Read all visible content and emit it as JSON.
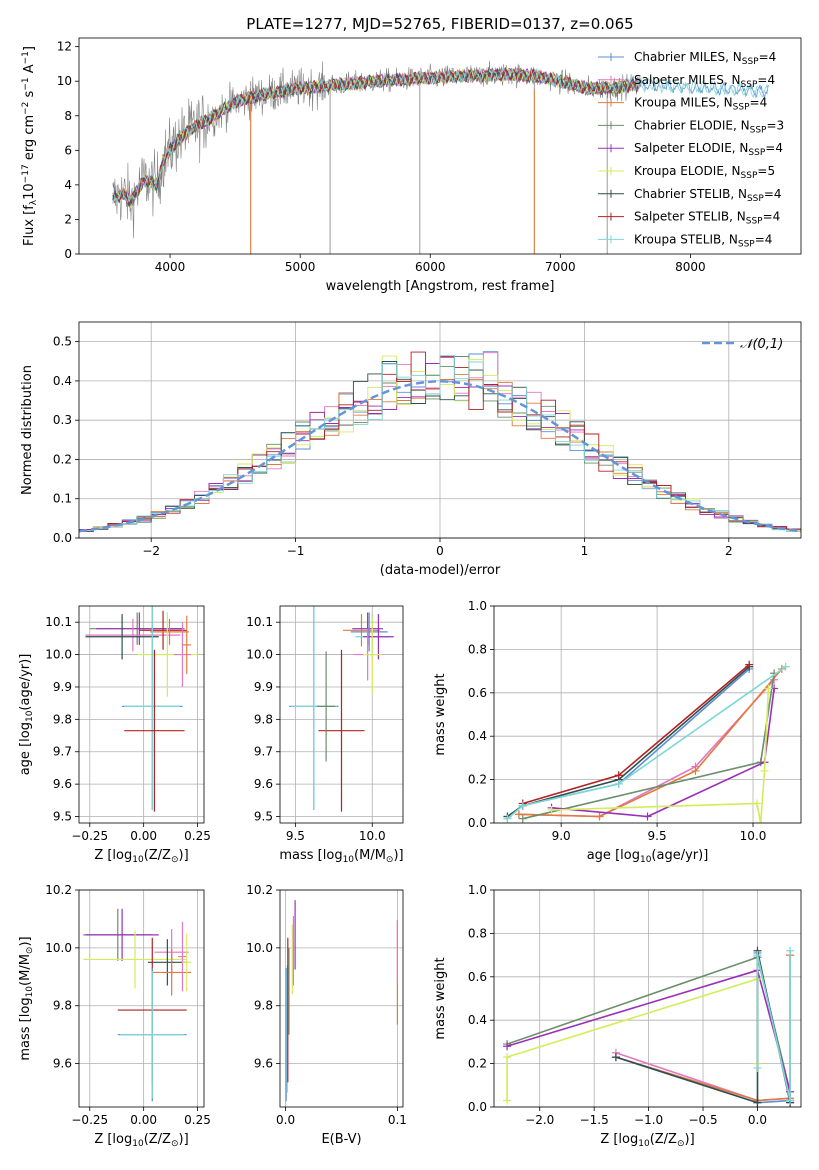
{
  "figure": {
    "title": "PLATE=1277, MJD=52765, FIBERID=0137, z=0.065"
  },
  "chart_data": [
    {
      "id": "spectrum",
      "type": "line",
      "xlabel": "wavelength [Angstrom, rest frame]",
      "ylabel": "Flux [f_λ10^−17 erg cm^−2 s^−1 A^−1]",
      "xlim": [
        3300,
        8850
      ],
      "ylim": [
        0,
        12.5
      ],
      "xticks": [
        4000,
        5000,
        6000,
        7000,
        8000
      ],
      "yticks": [
        0,
        2,
        4,
        6,
        8,
        10,
        12
      ],
      "legend_position": "top-right",
      "series": [
        {
          "name": "Chabrier MILES, N_SSP=4",
          "color": "#5b8fd6"
        },
        {
          "name": "Salpeter MILES, N_SSP=4",
          "color": "#e377c2"
        },
        {
          "name": "Kroupa MILES, N_SSP=4",
          "color": "#e07b3a"
        },
        {
          "name": "Chabrier ELODIE, N_SSP=3",
          "color": "#6b8e6b"
        },
        {
          "name": "Salpeter ELODIE, N_SSP=4",
          "color": "#9b30b8"
        },
        {
          "name": "Kroupa ELODIE, N_SSP=5",
          "color": "#d4ec5a"
        },
        {
          "name": "Chabrier STELIB, N_SSP=4",
          "color": "#2f4f4f"
        },
        {
          "name": "Salpeter STELIB, N_SSP=4",
          "color": "#b22222"
        },
        {
          "name": "Kroupa STELIB, N_SSP=4",
          "color": "#7ed6d6"
        }
      ],
      "data_color": "#808080",
      "model_shape": {
        "x": [
          3560,
          3650,
          3700,
          3800,
          3900,
          3950,
          4050,
          4150,
          4300,
          4500,
          4700,
          5000,
          5300,
          5600,
          6000,
          6300,
          6600,
          6800,
          7000,
          7200,
          7400,
          7600
        ],
        "y": [
          3.2,
          3.5,
          3.0,
          4.3,
          4.0,
          5.5,
          6.5,
          7.2,
          7.8,
          8.8,
          9.2,
          9.6,
          9.8,
          10.0,
          10.2,
          10.3,
          10.4,
          10.3,
          10.0,
          9.6,
          9.6,
          9.8
        ]
      }
    },
    {
      "id": "residual-hist",
      "type": "step",
      "xlabel": "(data-model)/error",
      "ylabel": "Normed distribution",
      "xlim": [
        -2.5,
        2.5
      ],
      "ylim": [
        0,
        0.55
      ],
      "xticks": [
        -2,
        -1,
        0,
        1,
        2
      ],
      "xtick_labels": [
        "−2",
        "−1",
        "0",
        "1",
        "2"
      ],
      "yticks": [
        0.0,
        0.1,
        0.2,
        0.3,
        0.4,
        0.5
      ],
      "legend_position": "top-right",
      "legend": "𝒩(0,1)",
      "normal_color": "#6495d8",
      "bin_width": 0.1
    },
    {
      "id": "age-vs-Z",
      "type": "errorbar",
      "xlabel": "Z [log10(Z/Z⊙)]",
      "ylabel": "age [log10(age/yr)]",
      "xlim": [
        -0.3,
        0.28
      ],
      "ylim": [
        9.48,
        10.15
      ],
      "xticks": [
        -0.25,
        0.0,
        0.25
      ],
      "xtick_labels": [
        "−0.25",
        "0.00",
        "0.25"
      ],
      "yticks": [
        9.5,
        9.6,
        9.7,
        9.8,
        9.9,
        10.0,
        10.1
      ],
      "points": [
        {
          "x": -0.03,
          "y": 10.08,
          "xerr": 0.22,
          "yerr": 0.05,
          "c": 3
        },
        {
          "x": -0.02,
          "y": 10.08,
          "xerr": 0.2,
          "yerr": 0.05,
          "c": 4
        },
        {
          "x": -0.05,
          "y": 10.06,
          "xerr": 0.22,
          "yerr": 0.05,
          "c": 1
        },
        {
          "x": -0.1,
          "y": 10.055,
          "xerr": 0.17,
          "yerr": 0.07,
          "c": 6
        },
        {
          "x": 0.09,
          "y": 10.075,
          "xerr": 0.11,
          "yerr": 0.06,
          "c": 7
        },
        {
          "x": 0.12,
          "y": 10.07,
          "xerr": 0.09,
          "yerr": 0.04,
          "c": 2
        },
        {
          "x": 0.11,
          "y": 10.0,
          "xerr": 0.14,
          "yerr": 0.13,
          "c": 5
        },
        {
          "x": 0.04,
          "y": 9.84,
          "xerr": 0.14,
          "yerr": 0.32,
          "c": 0
        },
        {
          "x": 0.04,
          "y": 9.84,
          "xerr": 0.13,
          "yerr": 0.32,
          "c": 8
        },
        {
          "x": 0.05,
          "y": 9.765,
          "xerr": 0.14,
          "yerr": 0.25,
          "c": 7
        },
        {
          "x": 0.18,
          "y": 10.0,
          "xerr": 0.04,
          "yerr": 0.1,
          "c": 1
        },
        {
          "x": 0.2,
          "y": 10.03,
          "xerr": 0.02,
          "yerr": 0.09,
          "c": 2
        }
      ]
    },
    {
      "id": "age-vs-mass",
      "type": "errorbar",
      "xlabel": "mass [log10(M/M⊙)]",
      "xlim": [
        9.4,
        10.2
      ],
      "ylim": [
        9.48,
        10.15
      ],
      "xticks": [
        9.5,
        10.0
      ],
      "yticks": [
        9.5,
        9.6,
        9.7,
        9.8,
        9.9,
        10.0,
        10.1
      ],
      "points": [
        {
          "x": 9.93,
          "y": 10.075,
          "xerr": 0.12,
          "yerr": 0.05,
          "c": 2
        },
        {
          "x": 9.97,
          "y": 10.08,
          "xerr": 0.1,
          "yerr": 0.05,
          "c": 4
        },
        {
          "x": 9.98,
          "y": 10.07,
          "xerr": 0.12,
          "yerr": 0.06,
          "c": 0
        },
        {
          "x": 10.0,
          "y": 10.055,
          "xerr": 0.11,
          "yerr": 0.07,
          "c": 8
        },
        {
          "x": 10.04,
          "y": 10.055,
          "xerr": 0.1,
          "yerr": 0.07,
          "c": 4
        },
        {
          "x": 9.97,
          "y": 10.0,
          "xerr": 0.09,
          "yerr": 0.08,
          "c": 1
        },
        {
          "x": 10.0,
          "y": 10.0,
          "xerr": 0.06,
          "yerr": 0.12,
          "c": 5
        },
        {
          "x": 9.62,
          "y": 9.84,
          "xerr": 0.16,
          "yerr": 0.32,
          "c": 0
        },
        {
          "x": 9.62,
          "y": 9.84,
          "xerr": 0.15,
          "yerr": 0.32,
          "c": 8
        },
        {
          "x": 9.8,
          "y": 9.765,
          "xerr": 0.15,
          "yerr": 0.25,
          "c": 7
        },
        {
          "x": 9.7,
          "y": 9.84,
          "xerr": 0.06,
          "yerr": 0.17,
          "c": 3
        }
      ]
    },
    {
      "id": "weight-vs-age",
      "type": "line",
      "xlabel": "age [log10(age/yr)]",
      "ylabel": "mass weight",
      "xlim": [
        8.65,
        10.25
      ],
      "ylim": [
        0,
        1.0
      ],
      "xticks": [
        9.0,
        9.5,
        10.0
      ],
      "yticks": [
        0.0,
        0.2,
        0.4,
        0.6,
        0.8,
        1.0
      ],
      "series": [
        {
          "c": 0,
          "x": [
            8.72,
            8.8,
            9.3,
            9.98
          ],
          "y": [
            0.03,
            0.08,
            0.18,
            0.71
          ]
        },
        {
          "c": 1,
          "x": [
            8.78,
            9.2,
            9.7,
            10.11
          ],
          "y": [
            0.04,
            0.03,
            0.26,
            0.66
          ]
        },
        {
          "c": 2,
          "x": [
            8.78,
            9.2,
            9.7,
            10.15
          ],
          "y": [
            0.04,
            0.03,
            0.24,
            0.71
          ]
        },
        {
          "c": 3,
          "x": [
            8.8,
            10.04,
            10.11
          ],
          "y": [
            0.02,
            0.28,
            0.69
          ]
        },
        {
          "c": 4,
          "x": [
            8.95,
            9.45,
            10.06,
            10.11
          ],
          "y": [
            0.07,
            0.03,
            0.28,
            0.62
          ]
        },
        {
          "c": 5,
          "x": [
            8.95,
            10.02,
            10.04,
            10.06,
            10.08
          ],
          "y": [
            0.06,
            0.09,
            0.0,
            0.24,
            0.62
          ]
        },
        {
          "c": 6,
          "x": [
            8.72,
            8.8,
            9.3,
            9.98
          ],
          "y": [
            0.03,
            0.08,
            0.2,
            0.72
          ]
        },
        {
          "c": 7,
          "x": [
            8.8,
            9.3,
            9.98
          ],
          "y": [
            0.09,
            0.22,
            0.73
          ]
        },
        {
          "c": 8,
          "x": [
            8.72,
            8.8,
            9.3,
            10.17
          ],
          "y": [
            0.02,
            0.08,
            0.18,
            0.72
          ]
        }
      ]
    },
    {
      "id": "mass-vs-Z",
      "type": "errorbar",
      "xlabel": "Z [log10(Z/Z⊙)]",
      "ylabel": "mass [log10(M/M⊙)]",
      "xlim": [
        -0.3,
        0.28
      ],
      "ylim": [
        9.45,
        10.2
      ],
      "xticks": [
        -0.25,
        0.0,
        0.25
      ],
      "xtick_labels": [
        "−0.25",
        "0.00",
        "0.25"
      ],
      "yticks": [
        9.6,
        9.8,
        10.0,
        10.2
      ],
      "points": [
        {
          "x": -0.12,
          "y": 10.045,
          "xerr": 0.16,
          "yerr": 0.09,
          "c": 3
        },
        {
          "x": -0.1,
          "y": 10.045,
          "xerr": 0.17,
          "yerr": 0.09,
          "c": 4
        },
        {
          "x": -0.04,
          "y": 9.96,
          "xerr": 0.24,
          "yerr": 0.1,
          "c": 5
        },
        {
          "x": 0.13,
          "y": 9.985,
          "xerr": 0.08,
          "yerr": 0.08,
          "c": 1
        },
        {
          "x": 0.11,
          "y": 9.95,
          "xerr": 0.09,
          "yerr": 0.08,
          "c": 6
        },
        {
          "x": 0.13,
          "y": 9.915,
          "xerr": 0.09,
          "yerr": 0.08,
          "c": 2
        },
        {
          "x": 0.04,
          "y": 9.785,
          "xerr": 0.16,
          "yerr": 0.25,
          "c": 7
        },
        {
          "x": 0.04,
          "y": 9.7,
          "xerr": 0.16,
          "yerr": 0.23,
          "c": 0
        },
        {
          "x": 0.04,
          "y": 9.7,
          "xerr": 0.15,
          "yerr": 0.22,
          "c": 8
        },
        {
          "x": 0.18,
          "y": 9.97,
          "xerr": 0.02,
          "yerr": 0.12,
          "c": 1
        },
        {
          "x": 0.2,
          "y": 9.95,
          "xerr": 0.02,
          "yerr": 0.1,
          "c": 5
        }
      ]
    },
    {
      "id": "mass-vs-ebv",
      "type": "errorbar",
      "xlabel": "E(B-V)",
      "xlim": [
        -0.005,
        0.105
      ],
      "ylim": [
        9.45,
        10.2
      ],
      "xticks": [
        0.0,
        0.1
      ],
      "xtick_labels": [
        "0.0",
        "0.1"
      ],
      "yticks": [
        9.6,
        9.8,
        10.0,
        10.2
      ],
      "points": [
        {
          "x": 0.0005,
          "y": 9.7,
          "yerr": 0.23,
          "c": 0
        },
        {
          "x": 0.0015,
          "y": 9.72,
          "yerr": 0.22,
          "c": 8
        },
        {
          "x": 0.002,
          "y": 9.785,
          "yerr": 0.25,
          "c": 7
        },
        {
          "x": 0.003,
          "y": 9.85,
          "yerr": 0.15,
          "c": 3
        },
        {
          "x": 0.006,
          "y": 9.96,
          "yerr": 0.12,
          "c": 5
        },
        {
          "x": 0.007,
          "y": 9.99,
          "yerr": 0.12,
          "c": 1
        },
        {
          "x": 0.0085,
          "y": 10.045,
          "yerr": 0.12,
          "c": 4
        },
        {
          "x": 0.1,
          "y": 9.915,
          "yerr": 0.18,
          "c": 2
        },
        {
          "x": 0.1,
          "y": 9.985,
          "yerr": 0.11,
          "c": 1
        }
      ]
    },
    {
      "id": "weight-vs-Z",
      "type": "line",
      "xlabel": "Z [log10(Z/Z⊙)]",
      "ylabel": "mass weight",
      "xlim": [
        -2.42,
        0.4
      ],
      "ylim": [
        0,
        1.0
      ],
      "xticks": [
        -2.0,
        -1.5,
        -1.0,
        -0.5,
        0.0
      ],
      "xtick_labels": [
        "−2.0",
        "−1.5",
        "−1.0",
        "−0.5",
        "0.0"
      ],
      "yticks": [
        0.0,
        0.2,
        0.4,
        0.6,
        0.8,
        1.0
      ],
      "series": [
        {
          "c": 0,
          "x": [
            -1.3,
            0.0,
            0.3,
            0.0
          ],
          "y": [
            0.23,
            0.02,
            0.03,
            0.71
          ]
        },
        {
          "c": 1,
          "x": [
            -1.3,
            0.0,
            0.3,
            0.3
          ],
          "y": [
            0.25,
            0.03,
            0.04,
            0.7
          ]
        },
        {
          "c": 2,
          "x": [
            -1.3,
            0.0,
            0.3,
            0.3
          ],
          "y": [
            0.23,
            0.03,
            0.04,
            0.7
          ]
        },
        {
          "c": 3,
          "x": [
            -2.3,
            0.0,
            0.3,
            0.3
          ],
          "y": [
            0.29,
            0.69,
            0.07,
            0.02
          ]
        },
        {
          "c": 4,
          "x": [
            -2.3,
            0.0,
            0.3,
            0.3
          ],
          "y": [
            0.28,
            0.63,
            0.07,
            0.03
          ]
        },
        {
          "c": 5,
          "x": [
            -2.3,
            -2.3,
            0.0,
            0.0
          ],
          "y": [
            0.03,
            0.23,
            0.59,
            0.2
          ]
        },
        {
          "c": 6,
          "x": [
            -1.3,
            0.0,
            0.0,
            0.3
          ],
          "y": [
            0.23,
            0.02,
            0.72,
            0.02
          ]
        },
        {
          "c": 8,
          "x": [
            0.0,
            0.0,
            0.3,
            0.3
          ],
          "y": [
            0.18,
            0.7,
            0.03,
            0.72
          ]
        }
      ]
    }
  ]
}
